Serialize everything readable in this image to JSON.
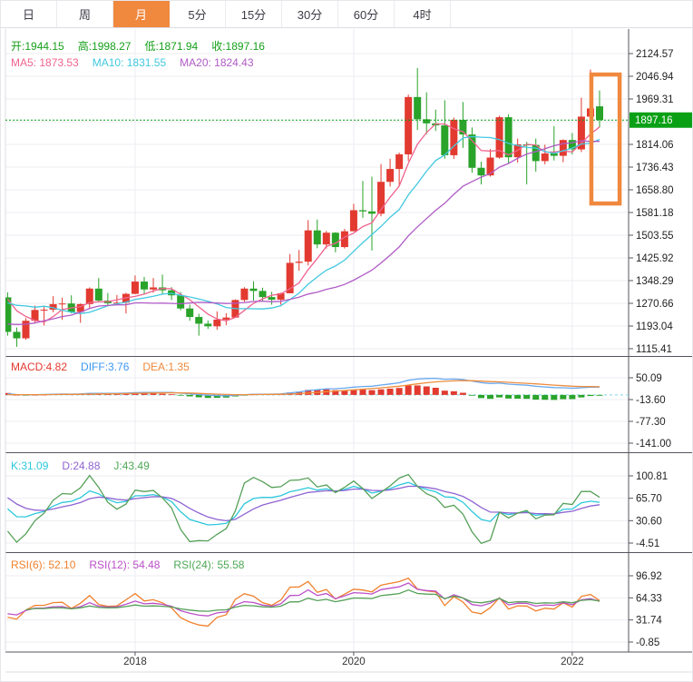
{
  "tabbar": {
    "tabs": [
      {
        "name": "tab-day",
        "label": "日",
        "active": false
      },
      {
        "name": "tab-week",
        "label": "周",
        "active": false
      },
      {
        "name": "tab-month",
        "label": "月",
        "active": true
      },
      {
        "name": "tab-5min",
        "label": "5分",
        "active": false
      },
      {
        "name": "tab-15min",
        "label": "15分",
        "active": false
      },
      {
        "name": "tab-30min",
        "label": "30分",
        "active": false
      },
      {
        "name": "tab-60min",
        "label": "60分",
        "active": false
      },
      {
        "name": "tab-4hour",
        "label": "4时",
        "active": false
      }
    ]
  },
  "main_panel": {
    "ohlc": [
      {
        "name": "open-value",
        "label": "开:",
        "value": "1944.15",
        "color": "#16a01a"
      },
      {
        "name": "high-value",
        "label": "高:",
        "value": "1998.27",
        "color": "#16a01a"
      },
      {
        "name": "low-value",
        "label": "低:",
        "value": "1871.94",
        "color": "#16a01a"
      },
      {
        "name": "close-value",
        "label": "收:",
        "value": "1897.16",
        "color": "#16a01a"
      }
    ],
    "ma": [
      {
        "name": "ma5-value",
        "label": "MA5: ",
        "value": "1873.53",
        "color": "#f0638e"
      },
      {
        "name": "ma10-value",
        "label": "MA10: ",
        "value": "1831.55",
        "color": "#42c8e0"
      },
      {
        "name": "ma20-value",
        "label": "MA20: ",
        "value": "1824.43",
        "color": "#b05bc6"
      }
    ],
    "price_badge": "1897.16",
    "axis_ticks": [
      "2124.57",
      "2046.94",
      "1969.31",
      "1814.06",
      "1736.43",
      "1658.80",
      "1581.18",
      "1503.55",
      "1425.92",
      "1348.29",
      "1270.66",
      "1193.04",
      "1115.41"
    ]
  },
  "macd_panel": {
    "legend": [
      {
        "name": "macd-value",
        "label": "MACD:",
        "value": "4.82",
        "color": "#e23a30"
      },
      {
        "name": "diff-value",
        "label": "DIFF:",
        "value": "3.76",
        "color": "#3d96f0"
      },
      {
        "name": "dea-value",
        "label": "DEA:",
        "value": "1.35",
        "color": "#f0883c"
      }
    ],
    "axis_ticks": [
      "50.09",
      "-13.60",
      "-77.30",
      "-141.00"
    ]
  },
  "kdj_panel": {
    "legend": [
      {
        "name": "k-value",
        "label": "K:",
        "value": "31.09",
        "color": "#2cc8dc"
      },
      {
        "name": "d-value",
        "label": "D:",
        "value": "24.88",
        "color": "#8f63d2"
      },
      {
        "name": "j-value",
        "label": "J:",
        "value": "43.49",
        "color": "#4ca855"
      }
    ],
    "axis_ticks": [
      "100.81",
      "65.70",
      "30.60",
      "-4.51"
    ]
  },
  "rsi_panel": {
    "legend": [
      {
        "name": "rsi6-value",
        "label": "RSI(6): ",
        "value": "52.10",
        "color": "#f0812c"
      },
      {
        "name": "rsi12-value",
        "label": "RSI(12): ",
        "value": "54.48",
        "color": "#bb4fc8"
      },
      {
        "name": "rsi24-value",
        "label": "RSI(24): ",
        "value": "55.58",
        "color": "#4ca855"
      }
    ],
    "axis_ticks": [
      "96.92",
      "64.33",
      "31.74",
      "-0.85"
    ]
  },
  "colors": {
    "up": "#e23a30",
    "down": "#29a329",
    "badge": "#09a015",
    "ma5": "#f0638e",
    "ma10": "#42c8e0",
    "ma20": "#b05bc6",
    "diff": "#68a8ee",
    "dea": "#ee8c3c",
    "k": "#2cc8dc",
    "d": "#8f63d2",
    "j": "#55a058",
    "rsi6": "#f0812c",
    "rsi12": "#bb4fc8",
    "rsi24": "#55a058",
    "grid": "#ededf3",
    "axis": "#55555e",
    "zero_line": "#7fd8e8",
    "tab_active": "#f0883e",
    "highlight": "#f0883e"
  },
  "chart_data": {
    "type": "candlestick",
    "period": "月",
    "title": "",
    "x_axis_labels": [
      {
        "label": "2018",
        "candle_index": 14
      },
      {
        "label": "2020",
        "candle_index": 38
      },
      {
        "label": "2022",
        "candle_index": 62
      }
    ],
    "main_axis": {
      "max": 2124.57,
      "min": 1115.41,
      "hidden_tick": 1891.68
    },
    "macd_axis": {
      "max": 50.09,
      "min": -141.0
    },
    "kdj_axis": {
      "max": 100.81,
      "min": -4.51
    },
    "rsi_axis": {
      "max": 96.92,
      "min": -0.85
    },
    "current_price": 1897.16,
    "indicators": {
      "ma": [
        5,
        10,
        20
      ],
      "macd": [
        12,
        26,
        9
      ],
      "kdj": [
        9,
        3,
        3
      ],
      "rsi": [
        6,
        12,
        24
      ]
    },
    "highlight_box": {
      "from_index": 64.1,
      "to_index": 67.2,
      "top_price": 2053,
      "bottom_price": 1612,
      "color": "#f0883e"
    },
    "warmup_closes": [
      1283,
      1213,
      1184,
      1180,
      1191,
      1172,
      1096,
      1135,
      1115,
      1142,
      1065,
      1060,
      1118,
      1234,
      1232,
      1293,
      1215,
      1322,
      1351,
      1309,
      1316,
      1277
    ],
    "candles": [
      [
        1291,
        1308,
        1160,
        1173
      ],
      [
        1173,
        1188,
        1122,
        1151
      ],
      [
        1151,
        1220,
        1146,
        1211
      ],
      [
        1211,
        1263,
        1205,
        1248
      ],
      [
        1248,
        1261,
        1195,
        1249
      ],
      [
        1249,
        1295,
        1240,
        1268
      ],
      [
        1268,
        1290,
        1214,
        1270
      ],
      [
        1270,
        1298,
        1236,
        1241
      ],
      [
        1241,
        1270,
        1204,
        1268
      ],
      [
        1268,
        1325,
        1251,
        1321
      ],
      [
        1321,
        1357,
        1277,
        1280
      ],
      [
        1280,
        1306,
        1260,
        1271
      ],
      [
        1271,
        1299,
        1265,
        1273
      ],
      [
        1273,
        1307,
        1236,
        1303
      ],
      [
        1303,
        1366,
        1302,
        1345
      ],
      [
        1345,
        1361,
        1303,
        1318
      ],
      [
        1318,
        1357,
        1307,
        1325
      ],
      [
        1325,
        1369,
        1301,
        1315
      ],
      [
        1315,
        1326,
        1282,
        1298
      ],
      [
        1298,
        1309,
        1247,
        1253
      ],
      [
        1253,
        1266,
        1211,
        1224
      ],
      [
        1224,
        1235,
        1160,
        1201
      ],
      [
        1201,
        1212,
        1183,
        1192
      ],
      [
        1192,
        1243,
        1180,
        1215
      ],
      [
        1215,
        1237,
        1196,
        1222
      ],
      [
        1222,
        1284,
        1221,
        1282
      ],
      [
        1282,
        1326,
        1276,
        1321
      ],
      [
        1321,
        1346,
        1280,
        1313
      ],
      [
        1313,
        1324,
        1280,
        1292
      ],
      [
        1292,
        1310,
        1266,
        1283
      ],
      [
        1283,
        1307,
        1266,
        1305
      ],
      [
        1305,
        1439,
        1305,
        1409
      ],
      [
        1409,
        1453,
        1382,
        1413
      ],
      [
        1413,
        1555,
        1400,
        1520
      ],
      [
        1520,
        1557,
        1459,
        1472
      ],
      [
        1472,
        1518,
        1458,
        1512
      ],
      [
        1512,
        1514,
        1445,
        1463
      ],
      [
        1463,
        1525,
        1458,
        1517
      ],
      [
        1517,
        1611,
        1517,
        1589
      ],
      [
        1589,
        1689,
        1563,
        1585
      ],
      [
        1585,
        1704,
        1451,
        1577
      ],
      [
        1577,
        1747,
        1568,
        1686
      ],
      [
        1686,
        1765,
        1670,
        1730
      ],
      [
        1730,
        1786,
        1670,
        1780
      ],
      [
        1780,
        1984,
        1757,
        1976
      ],
      [
        1976,
        2075,
        1863,
        1900
      ],
      [
        1900,
        1992,
        1849,
        1886
      ],
      [
        1886,
        1933,
        1860,
        1879
      ],
      [
        1879,
        1965,
        1765,
        1777
      ],
      [
        1777,
        1906,
        1764,
        1898
      ],
      [
        1898,
        1959,
        1802,
        1848
      ],
      [
        1848,
        1872,
        1717,
        1734
      ],
      [
        1734,
        1755,
        1677,
        1708
      ],
      [
        1708,
        1798,
        1704,
        1769
      ],
      [
        1769,
        1912,
        1765,
        1907
      ],
      [
        1907,
        1917,
        1750,
        1770
      ],
      [
        1770,
        1834,
        1752,
        1814
      ],
      [
        1814,
        1823,
        1677,
        1812
      ],
      [
        1812,
        1834,
        1721,
        1757
      ],
      [
        1757,
        1813,
        1746,
        1783
      ],
      [
        1783,
        1877,
        1759,
        1775
      ],
      [
        1775,
        1831,
        1753,
        1829
      ],
      [
        1829,
        1853,
        1780,
        1797
      ],
      [
        1797,
        1974,
        1788,
        1909
      ],
      [
        1909,
        2070,
        1890,
        1937
      ],
      [
        1944.15,
        1998.27,
        1871.94,
        1897.16
      ]
    ]
  }
}
